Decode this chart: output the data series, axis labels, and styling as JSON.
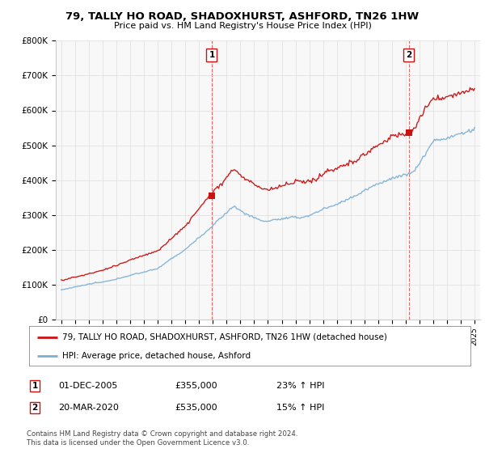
{
  "title": "79, TALLY HO ROAD, SHADOXHURST, ASHFORD, TN26 1HW",
  "subtitle": "Price paid vs. HM Land Registry's House Price Index (HPI)",
  "ylim": [
    0,
    800000
  ],
  "yticks": [
    0,
    100000,
    200000,
    300000,
    400000,
    500000,
    600000,
    700000,
    800000
  ],
  "ytick_labels": [
    "£0",
    "£100K",
    "£200K",
    "£300K",
    "£400K",
    "£500K",
    "£600K",
    "£700K",
    "£800K"
  ],
  "x_start_year": 1995,
  "x_end_year": 2025,
  "sale1_date": 2005.92,
  "sale1_price": 355000,
  "sale1_text": "01-DEC-2005",
  "sale1_pct": "23%",
  "sale2_date": 2020.22,
  "sale2_price": 535000,
  "sale2_text": "20-MAR-2020",
  "sale2_pct": "15%",
  "hpi_color": "#7bafd4",
  "price_color": "#cc1111",
  "marker_color": "#cc1111",
  "vline_color": "#cc1111",
  "legend_label1": "79, TALLY HO ROAD, SHADOXHURST, ASHFORD, TN26 1HW (detached house)",
  "legend_label2": "HPI: Average price, detached house, Ashford",
  "footer1": "Contains HM Land Registry data © Crown copyright and database right 2024.",
  "footer2": "This data is licensed under the Open Government Licence v3.0."
}
